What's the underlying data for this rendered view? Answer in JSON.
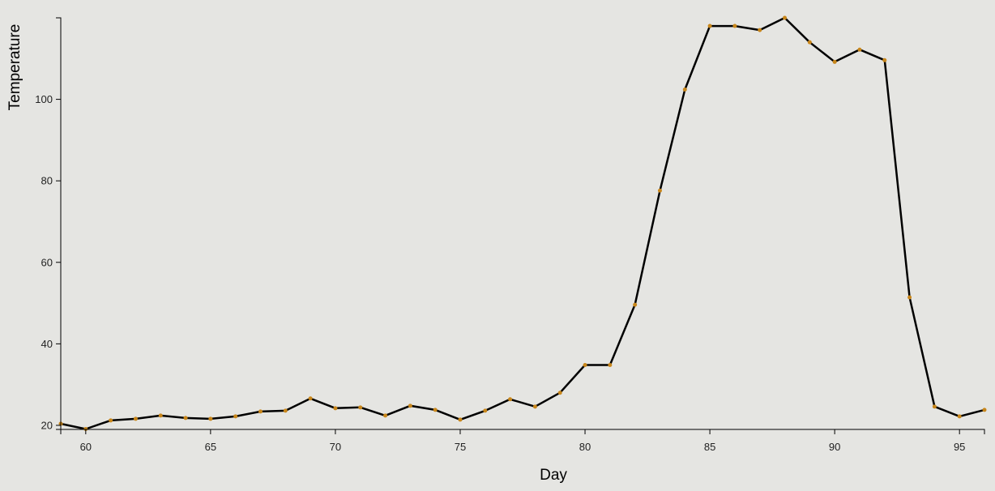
{
  "chart_data": {
    "type": "line",
    "title": "",
    "xlabel": "Day",
    "ylabel": "Temperature",
    "xlim": [
      59,
      96
    ],
    "ylim": [
      19,
      120
    ],
    "x_ticks": [
      "60",
      "65",
      "70",
      "75",
      "80",
      "85",
      "90",
      "95"
    ],
    "y_ticks": [
      "20",
      "40",
      "60",
      "80",
      "100"
    ],
    "grid": false,
    "legend": "none",
    "colors": {
      "line": "#000000",
      "points": "#c8861a",
      "background": "#e5e5e2"
    },
    "x": [
      59,
      60,
      61,
      62,
      63,
      64,
      65,
      66,
      67,
      68,
      69,
      70,
      71,
      72,
      73,
      74,
      75,
      76,
      77,
      78,
      79,
      80,
      81,
      82,
      83,
      84,
      85,
      86,
      87,
      88,
      89,
      90,
      91,
      92,
      93,
      94,
      95,
      96
    ],
    "series": [
      {
        "values": [
          20.4,
          19.1,
          21.2,
          21.6,
          22.4,
          21.8,
          21.6,
          22.2,
          23.4,
          23.6,
          26.6,
          24.2,
          24.4,
          22.4,
          24.8,
          23.8,
          21.4,
          23.6,
          26.4,
          24.6,
          28.0,
          34.8,
          34.8,
          49.6,
          77.6,
          102.4,
          118.0,
          118.0,
          117.0,
          120.0,
          114.0,
          109.2,
          112.2,
          109.6,
          51.4,
          24.6,
          22.2,
          23.8
        ]
      }
    ]
  }
}
